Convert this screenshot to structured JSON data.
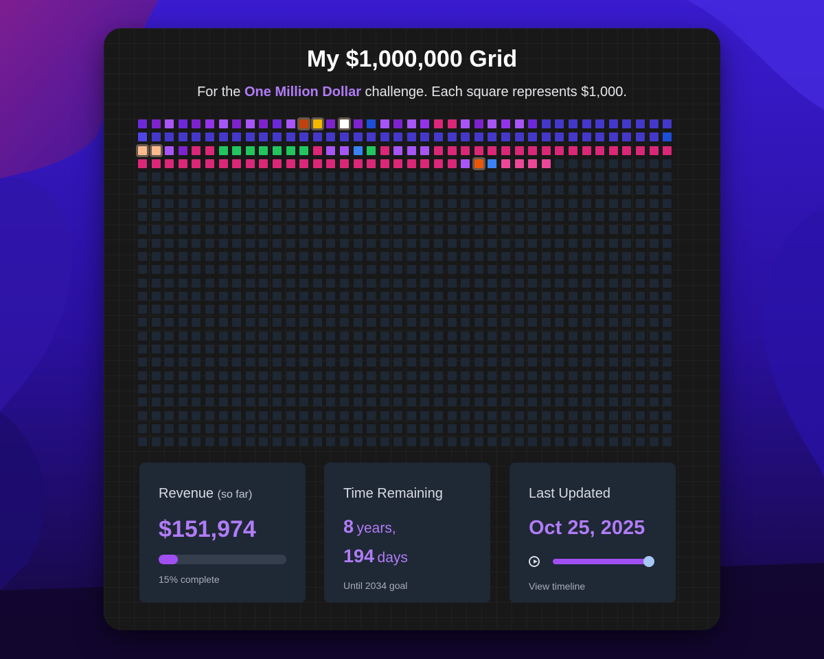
{
  "header": {
    "title": "My $1,000,000 Grid",
    "subtitle_prefix": "For the ",
    "subtitle_highlight": "One Million Dollar",
    "subtitle_suffix": " challenge. Each square represents $1,000."
  },
  "grid": {
    "columns": 40,
    "total_squares": 1000,
    "empty_color": "#1e2734",
    "filled_squares": [
      "#6d28d9",
      "#7e22ce",
      "#a855f7",
      "#6d28d9",
      "#7e22ce",
      "#9333ea",
      "#a855f7",
      "#7e22ce",
      "#a855f7",
      "#7e22ce",
      "#6d28d9",
      "#a855f7",
      "#c2410c",
      "#f4b800",
      "#7e22ce",
      "#ffffff",
      "#7e22ce",
      "#1d4ed8",
      "#a855f7",
      "#7e22ce",
      "#a855f7",
      "#9333ea",
      "#db2777",
      "#db2777",
      "#a855f7",
      "#7e22ce",
      "#a855f7",
      "#9333ea",
      "#a855f7",
      "#6d28d9",
      "#4338ca",
      "#4338ca",
      "#4338ca",
      "#4338ca",
      "#4338ca",
      "#4338ca",
      "#4338ca",
      "#4338ca",
      "#4338ca",
      "#4338ca",
      "#4f46e5",
      "#4338ca",
      "#4338ca",
      "#4338ca",
      "#4338ca",
      "#4338ca",
      "#4338ca",
      "#4338ca",
      "#4338ca",
      "#4338ca",
      "#4338ca",
      "#4338ca",
      "#4338ca",
      "#4338ca",
      "#4338ca",
      "#4338ca",
      "#4338ca",
      "#4338ca",
      "#4338ca",
      "#4338ca",
      "#4338ca",
      "#4338ca",
      "#4338ca",
      "#4338ca",
      "#4338ca",
      "#4338ca",
      "#4338ca",
      "#4338ca",
      "#4338ca",
      "#4338ca",
      "#4338ca",
      "#4338ca",
      "#4338ca",
      "#4338ca",
      "#4338ca",
      "#4338ca",
      "#4338ca",
      "#4338ca",
      "#4338ca",
      "#1d4ed8",
      "#fdba8c",
      "#fdba8c",
      "#a855f7",
      "#7e22ce",
      "#db2777",
      "#db2777",
      "#22c55e",
      "#22c55e",
      "#22c55e",
      "#22c55e",
      "#22c55e",
      "#22c55e",
      "#22c55e",
      "#db2777",
      "#a855f7",
      "#a855f7",
      "#3b82f6",
      "#22c55e",
      "#db2777",
      "#a855f7",
      "#a855f7",
      "#a855f7",
      "#db2777",
      "#db2777",
      "#db2777",
      "#db2777",
      "#db2777",
      "#db2777",
      "#db2777",
      "#db2777",
      "#db2777",
      "#db2777",
      "#db2777",
      "#db2777",
      "#db2777",
      "#db2777",
      "#db2777",
      "#db2777",
      "#db2777",
      "#db2777",
      "#db2777",
      "#db2777",
      "#db2777",
      "#db2777",
      "#db2777",
      "#db2777",
      "#db2777",
      "#db2777",
      "#db2777",
      "#db2777",
      "#db2777",
      "#db2777",
      "#db2777",
      "#db2777",
      "#db2777",
      "#db2777",
      "#db2777",
      "#db2777",
      "#db2777",
      "#db2777",
      "#db2777",
      "#db2777",
      "#db2777",
      "#db2777",
      "#a855f7",
      "#ea580c",
      "#3b82f6",
      "#ec4899",
      "#ec4899",
      "#ec4899",
      "#ec4899"
    ],
    "highlighted_indices": [
      12,
      13,
      15,
      80,
      81,
      145
    ]
  },
  "stats": {
    "revenue": {
      "label": "Revenue",
      "label_note": "(so far)",
      "value": "$151,974",
      "progress_percent": 15,
      "caption": "15% complete"
    },
    "time_remaining": {
      "label": "Time Remaining",
      "years_value": "8",
      "years_unit": "years,",
      "days_value": "194",
      "days_unit": "days",
      "caption": "Until 2034 goal"
    },
    "last_updated": {
      "label": "Last Updated",
      "value": "Oct 25, 2025",
      "timeline_position_percent": 100,
      "caption": "View timeline"
    }
  },
  "colors": {
    "accent": "#b07cf7",
    "progress": "#9f4ff2",
    "card_bg": "#181818",
    "stat_bg": "#1f2835"
  },
  "icons": {
    "play": "play-circle-icon"
  }
}
